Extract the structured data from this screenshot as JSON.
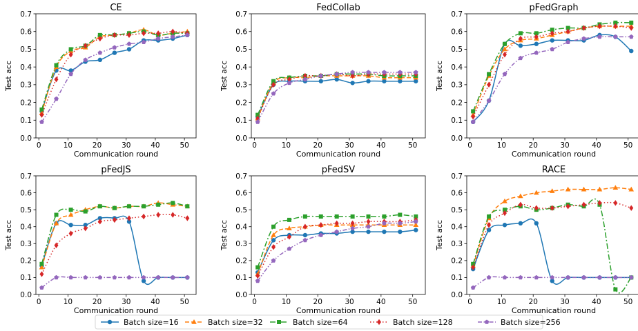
{
  "figure": {
    "background": "#ffffff"
  },
  "legend": {
    "placement": "bottom-center",
    "entries": [
      {
        "label": "Batch size=16",
        "color": "#1f77b4",
        "linestyle": "solid",
        "marker": "circle"
      },
      {
        "label": "Batch size=32",
        "color": "#ff7f0e",
        "linestyle": "dashed",
        "marker": "triangle-up"
      },
      {
        "label": "Batch size=64",
        "color": "#2ca02c",
        "linestyle": "dashdot",
        "marker": "square"
      },
      {
        "label": "Batch size=128",
        "color": "#d62728",
        "linestyle": "dotted",
        "marker": "diamond"
      },
      {
        "label": "Batch size=256",
        "color": "#9467bd",
        "linestyle": "dashdotdot",
        "marker": "pentagon"
      }
    ]
  },
  "chart_data": [
    {
      "type": "line",
      "title": "CE",
      "xlabel": "Communication round",
      "ylabel": "Test acc",
      "xlim": [
        -1,
        54
      ],
      "ylim": [
        0,
        0.7
      ],
      "xticks": [
        "0",
        "10",
        "20",
        "30",
        "40",
        "50"
      ],
      "yticks": [
        "0.0",
        "0.1",
        "0.2",
        "0.3",
        "0.4",
        "0.5",
        "0.6",
        "0.7"
      ],
      "x": [
        1,
        6,
        11,
        16,
        21,
        26,
        31,
        36,
        41,
        46,
        51
      ],
      "series": [
        {
          "name": "Batch size=16",
          "values": [
            0.15,
            0.38,
            0.38,
            0.43,
            0.44,
            0.48,
            0.5,
            0.55,
            0.55,
            0.56,
            0.58
          ]
        },
        {
          "name": "Batch size=32",
          "values": [
            0.14,
            0.4,
            0.49,
            0.51,
            0.57,
            0.58,
            0.59,
            0.61,
            0.58,
            0.59,
            0.6
          ]
        },
        {
          "name": "Batch size=64",
          "values": [
            0.16,
            0.41,
            0.5,
            0.52,
            0.58,
            0.58,
            0.59,
            0.6,
            0.58,
            0.59,
            0.59
          ]
        },
        {
          "name": "Batch size=128",
          "values": [
            0.13,
            0.33,
            0.47,
            0.52,
            0.56,
            0.58,
            0.58,
            0.59,
            0.59,
            0.6,
            0.59
          ]
        },
        {
          "name": "Batch size=256",
          "values": [
            0.09,
            0.22,
            0.36,
            0.44,
            0.48,
            0.51,
            0.53,
            0.54,
            0.56,
            0.57,
            0.58
          ]
        }
      ]
    },
    {
      "type": "line",
      "title": "FedCollab",
      "xlabel": "Communication round",
      "ylabel": "Test acc",
      "xlim": [
        -1,
        54
      ],
      "ylim": [
        0,
        0.7
      ],
      "xticks": [
        "0",
        "10",
        "20",
        "30",
        "40",
        "50"
      ],
      "yticks": [
        "0.0",
        "0.1",
        "0.2",
        "0.3",
        "0.4",
        "0.5",
        "0.6",
        "0.7"
      ],
      "x": [
        1,
        6,
        11,
        16,
        21,
        26,
        31,
        36,
        41,
        46,
        51
      ],
      "series": [
        {
          "name": "Batch size=16",
          "values": [
            0.12,
            0.3,
            0.32,
            0.32,
            0.32,
            0.33,
            0.31,
            0.32,
            0.32,
            0.32,
            0.32
          ]
        },
        {
          "name": "Batch size=32",
          "values": [
            0.11,
            0.31,
            0.34,
            0.34,
            0.35,
            0.35,
            0.35,
            0.35,
            0.34,
            0.34,
            0.34
          ]
        },
        {
          "name": "Batch size=64",
          "values": [
            0.13,
            0.32,
            0.34,
            0.35,
            0.35,
            0.36,
            0.36,
            0.36,
            0.35,
            0.35,
            0.35
          ]
        },
        {
          "name": "Batch size=128",
          "values": [
            0.11,
            0.3,
            0.33,
            0.35,
            0.35,
            0.36,
            0.35,
            0.36,
            0.36,
            0.36,
            0.36
          ]
        },
        {
          "name": "Batch size=256",
          "values": [
            0.09,
            0.25,
            0.31,
            0.33,
            0.35,
            0.36,
            0.37,
            0.37,
            0.37,
            0.37,
            0.37
          ]
        }
      ]
    },
    {
      "type": "line",
      "title": "pFedGraph",
      "xlabel": "Communication round",
      "ylabel": "Test acc",
      "xlim": [
        -1,
        54
      ],
      "ylim": [
        0,
        0.7
      ],
      "xticks": [
        "0",
        "10",
        "20",
        "30",
        "40",
        "50"
      ],
      "yticks": [
        "0.0",
        "0.1",
        "0.2",
        "0.3",
        "0.4",
        "0.5",
        "0.6",
        "0.7"
      ],
      "x": [
        1,
        6,
        11,
        16,
        21,
        26,
        31,
        36,
        41,
        46,
        51
      ],
      "series": [
        {
          "name": "Batch size=16",
          "values": [
            0.09,
            0.21,
            0.53,
            0.52,
            0.53,
            0.55,
            0.55,
            0.55,
            0.58,
            0.57,
            0.49
          ]
        },
        {
          "name": "Batch size=32",
          "values": [
            0.13,
            0.35,
            0.5,
            0.55,
            0.56,
            0.58,
            0.6,
            0.62,
            0.63,
            0.63,
            0.63
          ]
        },
        {
          "name": "Batch size=64",
          "values": [
            0.15,
            0.36,
            0.53,
            0.59,
            0.59,
            0.61,
            0.62,
            0.62,
            0.64,
            0.65,
            0.65
          ]
        },
        {
          "name": "Batch size=128",
          "values": [
            0.12,
            0.3,
            0.47,
            0.56,
            0.57,
            0.59,
            0.6,
            0.62,
            0.63,
            0.63,
            0.62
          ]
        },
        {
          "name": "Batch size=256",
          "values": [
            0.09,
            0.21,
            0.36,
            0.45,
            0.48,
            0.5,
            0.54,
            0.56,
            0.57,
            0.57,
            0.57
          ]
        }
      ]
    },
    {
      "type": "line",
      "title": "pFedJS",
      "xlabel": "Communication round",
      "ylabel": "Test acc",
      "xlim": [
        -1,
        54
      ],
      "ylim": [
        0,
        0.7
      ],
      "xticks": [
        "0",
        "10",
        "20",
        "30",
        "40",
        "50"
      ],
      "yticks": [
        "0.0",
        "0.1",
        "0.2",
        "0.3",
        "0.4",
        "0.5",
        "0.6",
        "0.7"
      ],
      "x": [
        1,
        6,
        11,
        16,
        21,
        26,
        31,
        36,
        41,
        46,
        51
      ],
      "series": [
        {
          "name": "Batch size=16",
          "values": [
            0.17,
            0.42,
            0.41,
            0.41,
            0.45,
            0.45,
            0.43,
            0.08,
            0.1,
            0.1,
            0.1
          ]
        },
        {
          "name": "Batch size=32",
          "values": [
            0.16,
            0.42,
            0.47,
            0.5,
            0.52,
            0.51,
            0.52,
            0.52,
            0.54,
            0.53,
            0.52
          ]
        },
        {
          "name": "Batch size=64",
          "values": [
            0.18,
            0.47,
            0.5,
            0.49,
            0.52,
            0.51,
            0.52,
            0.52,
            0.53,
            0.54,
            0.52
          ]
        },
        {
          "name": "Batch size=128",
          "values": [
            0.12,
            0.29,
            0.36,
            0.39,
            0.43,
            0.44,
            0.45,
            0.46,
            0.47,
            0.47,
            0.45
          ]
        },
        {
          "name": "Batch size=256",
          "values": [
            0.04,
            0.1,
            0.1,
            0.1,
            0.1,
            0.1,
            0.1,
            0.1,
            0.1,
            0.1,
            0.1
          ]
        }
      ]
    },
    {
      "type": "line",
      "title": "pFedSV",
      "xlabel": "Communication round",
      "ylabel": "Test acc",
      "xlim": [
        -1,
        54
      ],
      "ylim": [
        0,
        0.7
      ],
      "xticks": [
        "0",
        "10",
        "20",
        "30",
        "40",
        "50"
      ],
      "yticks": [
        "0.0",
        "0.1",
        "0.2",
        "0.3",
        "0.4",
        "0.5",
        "0.6",
        "0.7"
      ],
      "x": [
        1,
        6,
        11,
        16,
        21,
        26,
        31,
        36,
        41,
        46,
        51
      ],
      "series": [
        {
          "name": "Batch size=16",
          "values": [
            0.13,
            0.32,
            0.35,
            0.35,
            0.36,
            0.36,
            0.37,
            0.37,
            0.37,
            0.37,
            0.38
          ]
        },
        {
          "name": "Batch size=32",
          "values": [
            0.12,
            0.35,
            0.39,
            0.4,
            0.41,
            0.41,
            0.41,
            0.41,
            0.41,
            0.41,
            0.41
          ]
        },
        {
          "name": "Batch size=64",
          "values": [
            0.16,
            0.4,
            0.44,
            0.46,
            0.46,
            0.46,
            0.46,
            0.46,
            0.46,
            0.47,
            0.46
          ]
        },
        {
          "name": "Batch size=128",
          "values": [
            0.11,
            0.28,
            0.34,
            0.4,
            0.41,
            0.42,
            0.42,
            0.43,
            0.43,
            0.43,
            0.44
          ]
        },
        {
          "name": "Batch size=256",
          "values": [
            0.08,
            0.2,
            0.27,
            0.32,
            0.35,
            0.37,
            0.39,
            0.4,
            0.42,
            0.42,
            0.43
          ]
        }
      ]
    },
    {
      "type": "line",
      "title": "RACE",
      "xlabel": "Communication round",
      "ylabel": "Test acc",
      "xlim": [
        -1,
        54
      ],
      "ylim": [
        0,
        0.7
      ],
      "xticks": [
        "0",
        "10",
        "20",
        "30",
        "40",
        "50"
      ],
      "yticks": [
        "0.0",
        "0.1",
        "0.2",
        "0.3",
        "0.4",
        "0.5",
        "0.6",
        "0.7"
      ],
      "x": [
        1,
        6,
        11,
        16,
        21,
        26,
        31,
        36,
        41,
        46,
        51
      ],
      "series": [
        {
          "name": "Batch size=16",
          "values": [
            0.15,
            0.38,
            0.41,
            0.42,
            0.42,
            0.08,
            0.1,
            0.1,
            0.1,
            0.1,
            0.1
          ]
        },
        {
          "name": "Batch size=32",
          "values": [
            0.17,
            0.45,
            0.55,
            0.58,
            0.6,
            0.61,
            0.62,
            0.62,
            0.62,
            0.63,
            0.62
          ]
        },
        {
          "name": "Batch size=64",
          "values": [
            0.18,
            0.46,
            0.5,
            0.52,
            0.5,
            0.51,
            0.53,
            0.52,
            0.53,
            0.03,
            0.1
          ]
        },
        {
          "name": "Batch size=128",
          "values": [
            0.16,
            0.41,
            0.48,
            0.53,
            0.51,
            0.51,
            0.52,
            0.53,
            0.54,
            0.54,
            0.51
          ]
        },
        {
          "name": "Batch size=256",
          "values": [
            0.04,
            0.1,
            0.1,
            0.1,
            0.1,
            0.1,
            0.1,
            0.1,
            0.1,
            0.1,
            0.1
          ]
        }
      ]
    }
  ]
}
